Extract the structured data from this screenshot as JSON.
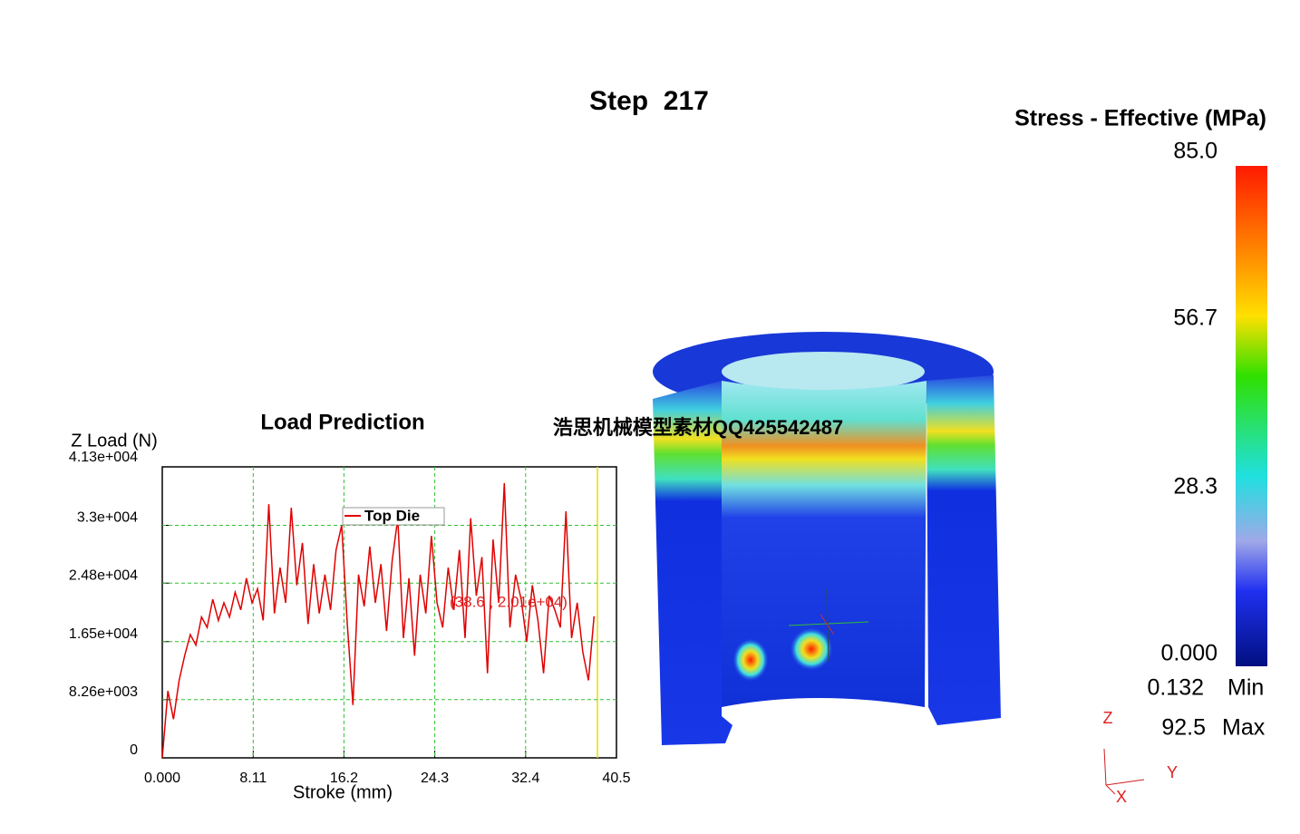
{
  "step_title": "Step  217",
  "watermark": "浩思机械模型素材QQ425542487",
  "legend": {
    "title": "Stress - Effective (MPa)",
    "ticks": [
      "85.0",
      "56.7",
      "28.3",
      "0.000"
    ],
    "min_value": "0.132",
    "min_label": "Min",
    "max_value": "92.5",
    "max_label": "Max"
  },
  "triad": {
    "z": "Z",
    "y": "Y",
    "x": "X"
  },
  "chart_data": {
    "type": "line",
    "title": "Load Prediction",
    "y_label": "Z Load (N)",
    "x_label": "Stroke (mm)",
    "annotation": "(38.6 , 2.01e+04)",
    "xlim": [
      0,
      40.5
    ],
    "ylim": [
      0,
      41300
    ],
    "xticks": [
      {
        "value": 0,
        "label": "0.000"
      },
      8.11,
      16.2,
      24.3,
      32.4,
      40.5
    ],
    "yticks": [
      0,
      {
        "value": 8260,
        "label": "8.26e+003"
      },
      {
        "value": 16500,
        "label": "1.65e+004"
      },
      {
        "value": 24800,
        "label": "2.48e+004"
      },
      {
        "value": 33000,
        "label": "3.3e+004"
      },
      {
        "value": 41300,
        "label": "4.13e+004"
      }
    ],
    "grid": true,
    "x": [
      0,
      0.5,
      1,
      1.5,
      2,
      2.5,
      3,
      3.5,
      4,
      4.5,
      5,
      5.5,
      6,
      6.5,
      7,
      7.5,
      8,
      8.5,
      9,
      9.5,
      10,
      10.5,
      11,
      11.5,
      12,
      12.5,
      13,
      13.5,
      14,
      14.5,
      15,
      15.5,
      16,
      16.5,
      17,
      17.5,
      18,
      18.5,
      19,
      19.5,
      20,
      20.5,
      21,
      21.5,
      22,
      22.5,
      23,
      23.5,
      24,
      24.5,
      25,
      25.5,
      26,
      26.5,
      27,
      27.5,
      28,
      28.5,
      29,
      29.5,
      30,
      30.5,
      31,
      31.5,
      32,
      32.5,
      33,
      33.5,
      34,
      34.5,
      35,
      35.5,
      36,
      36.5,
      37,
      37.5,
      38,
      38.5
    ],
    "series": [
      {
        "name": "Top Die",
        "color": "#e00000",
        "values": [
          0,
          9500,
          5500,
          11000,
          14500,
          17500,
          16000,
          20000,
          18500,
          22500,
          19500,
          22000,
          20000,
          23500,
          21000,
          25500,
          22000,
          24000,
          19500,
          36000,
          20500,
          27000,
          22000,
          35500,
          24500,
          30500,
          19000,
          27500,
          20500,
          26000,
          21000,
          29500,
          33000,
          19000,
          7500,
          26000,
          21500,
          30000,
          22000,
          27500,
          18000,
          28000,
          34000,
          17000,
          25500,
          14500,
          26000,
          20500,
          31500,
          22000,
          18500,
          27000,
          21000,
          29500,
          17000,
          34000,
          23000,
          28500,
          12000,
          31000,
          22000,
          39000,
          18500,
          26000,
          22500,
          16500,
          24500,
          19500,
          12000,
          23000,
          21000,
          18500,
          35000,
          17000,
          22000,
          15000,
          11000,
          20100
        ]
      }
    ]
  }
}
